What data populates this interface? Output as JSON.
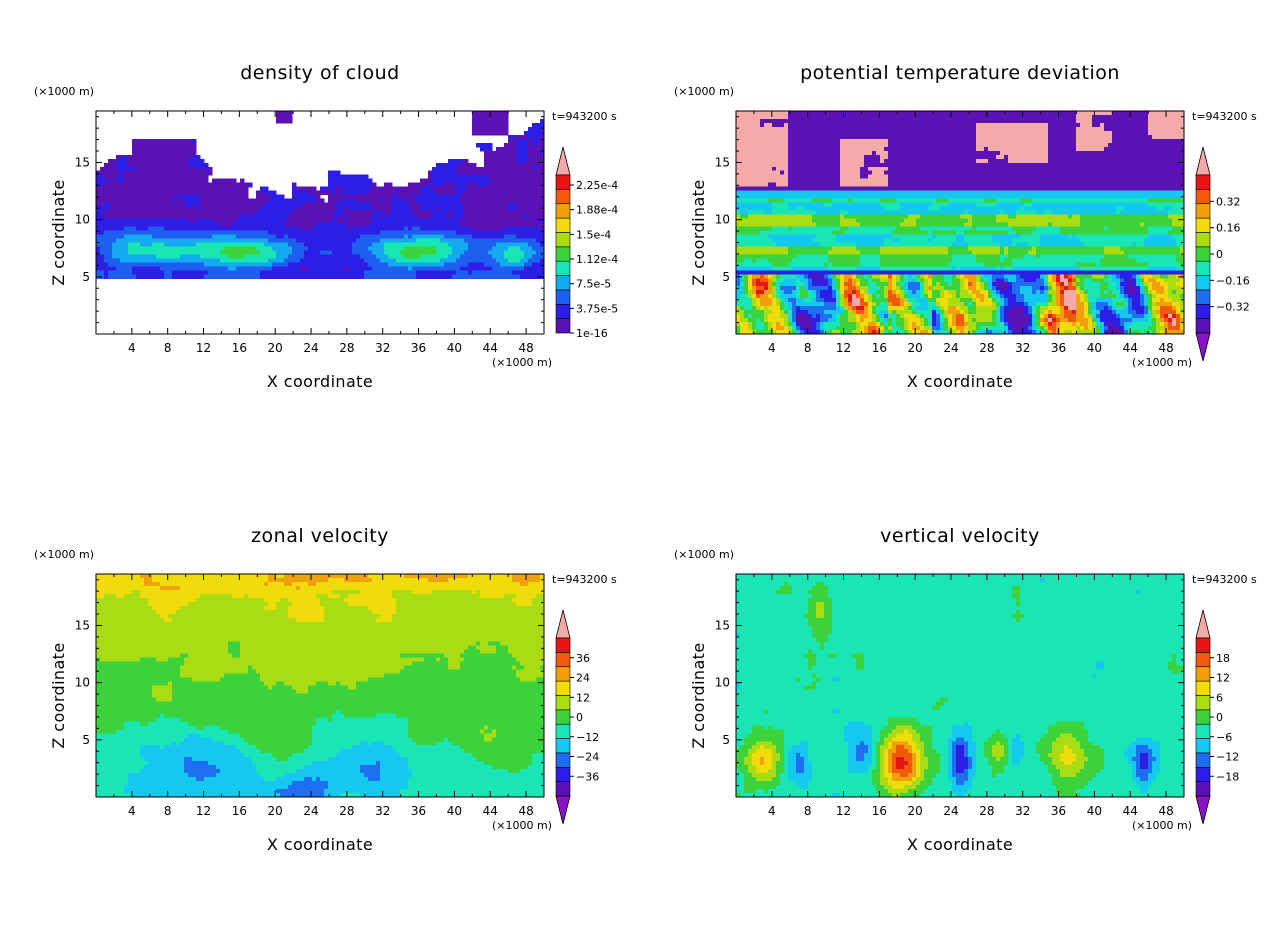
{
  "chart_data": [
    {
      "type": "heatmap",
      "title": "density of cloud",
      "xlabel": "X coordinate",
      "ylabel": "Z coordinate",
      "x_units": "(×1000 m)",
      "y_units": "(×1000 m)",
      "time_label": "t=943200 s",
      "xlim": [
        0,
        50
      ],
      "ylim": [
        0,
        19.5
      ],
      "x_ticks": [
        "4",
        "8",
        "12",
        "16",
        "20",
        "24",
        "28",
        "32",
        "36",
        "40",
        "44",
        "48"
      ],
      "y_ticks": [
        "5",
        "10",
        "15"
      ],
      "colorbar": {
        "labels": [
          "1e-16",
          "3.75e-5",
          "7.5e-5",
          "1.12e-4",
          "1.5e-4",
          "1.88e-4",
          "2.25e-4"
        ],
        "colors": [
          "#5a12b4",
          "#2d1ee6",
          "#1e5ff0",
          "#14aaf0",
          "#19e6b4",
          "#3cd23c",
          "#aadc14",
          "#f0dc0a",
          "#f0a00a",
          "#f05a0a",
          "#e61414"
        ],
        "overflow_top": "#f5aaaa",
        "arrow_bottom": false
      }
    },
    {
      "type": "heatmap",
      "title": "potential temperature deviation",
      "xlabel": "X coordinate",
      "ylabel": "Z coordinate",
      "x_units": "(×1000 m)",
      "y_units": "(×1000 m)",
      "time_label": "t=943200 s",
      "xlim": [
        0,
        50
      ],
      "ylim": [
        0,
        19.5
      ],
      "x_ticks": [
        "4",
        "8",
        "12",
        "16",
        "20",
        "24",
        "28",
        "32",
        "36",
        "40",
        "44",
        "48"
      ],
      "y_ticks": [
        "5",
        "10",
        "15"
      ],
      "colorbar": {
        "labels": [
          "−0.32",
          "−0.16",
          "0",
          "0.16",
          "0.32"
        ],
        "colors": [
          "#5a12b4",
          "#2d1ee6",
          "#1e6ef0",
          "#14c8f0",
          "#19e6b4",
          "#3cd23c",
          "#aadc14",
          "#f0dc0a",
          "#f0a00a",
          "#f05a0a",
          "#e61414"
        ],
        "overflow_top": "#f5aaaa",
        "overflow_bottom": "#8c14c8",
        "arrow_bottom": true
      }
    },
    {
      "type": "heatmap",
      "title": "zonal velocity",
      "xlabel": "X coordinate",
      "ylabel": "Z coordinate",
      "x_units": "(×1000 m)",
      "y_units": "(×1000 m)",
      "time_label": "t=943200 s",
      "xlim": [
        0,
        50
      ],
      "ylim": [
        0,
        19.5
      ],
      "x_ticks": [
        "4",
        "8",
        "12",
        "16",
        "20",
        "24",
        "28",
        "32",
        "36",
        "40",
        "44",
        "48"
      ],
      "y_ticks": [
        "5",
        "10",
        "15"
      ],
      "colorbar": {
        "labels": [
          "−36",
          "−24",
          "−12",
          "0",
          "12",
          "24",
          "36"
        ],
        "colors": [
          "#5a12b4",
          "#2d1ee6",
          "#1e6ef0",
          "#14c8f0",
          "#19e6b4",
          "#3cd23c",
          "#aadc14",
          "#f0dc0a",
          "#f0a00a",
          "#f05a0a",
          "#e61414"
        ],
        "overflow_top": "#f5aaaa",
        "overflow_bottom": "#8c14c8",
        "arrow_bottom": true
      }
    },
    {
      "type": "heatmap",
      "title": "vertical velocity",
      "xlabel": "X coordinate",
      "ylabel": "Z coordinate",
      "x_units": "(×1000 m)",
      "y_units": "(×1000 m)",
      "time_label": "t=943200 s",
      "xlim": [
        0,
        50
      ],
      "ylim": [
        0,
        19.5
      ],
      "x_ticks": [
        "4",
        "8",
        "12",
        "16",
        "20",
        "24",
        "28",
        "32",
        "36",
        "40",
        "44",
        "48"
      ],
      "y_ticks": [
        "5",
        "10",
        "15"
      ],
      "colorbar": {
        "labels": [
          "−18",
          "−12",
          "−6",
          "0",
          "6",
          "12",
          "18"
        ],
        "colors": [
          "#5a12b4",
          "#2d1ee6",
          "#1e6ef0",
          "#14c8f0",
          "#19e6b4",
          "#3cd23c",
          "#aadc14",
          "#f0dc0a",
          "#f0a00a",
          "#f05a0a",
          "#e61414"
        ],
        "overflow_top": "#f5aaaa",
        "overflow_bottom": "#8c14c8",
        "arrow_bottom": true
      }
    }
  ]
}
